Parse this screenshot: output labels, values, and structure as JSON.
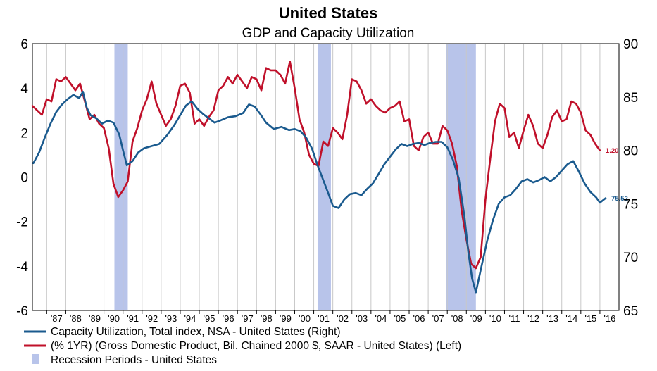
{
  "chart_data": {
    "type": "line",
    "title": "United States",
    "subtitle": "GDP and Capacity Utilization",
    "left_axis": {
      "ylim": [
        -6,
        6
      ],
      "ticks": [
        "6",
        "4",
        "2",
        "0",
        "-2",
        "-4",
        "-6"
      ],
      "tick_values": [
        6,
        4,
        2,
        0,
        -2,
        -4,
        -6
      ]
    },
    "right_axis": {
      "ylim": [
        65,
        90
      ],
      "ticks": [
        "90",
        "85",
        "80",
        "75",
        "70",
        "65"
      ],
      "tick_values": [
        90,
        85,
        80,
        75,
        70,
        65
      ]
    },
    "xlim": [
      1986.25,
      2017.0
    ],
    "x_tick_labels": [
      "'87",
      "'88",
      "'89",
      "'90",
      "'91",
      "'92",
      "'93",
      "'94",
      "'95",
      "'96",
      "'97",
      "'98",
      "'99",
      "'00",
      "'01",
      "'02",
      "'03",
      "'04",
      "'05",
      "'06",
      "'07",
      "'08",
      "'09",
      "'10",
      "'11",
      "'12",
      "'13",
      "'14",
      "'15",
      "'16"
    ],
    "x_tick_years": [
      1987,
      1988,
      1989,
      1990,
      1991,
      1992,
      1993,
      1994,
      1995,
      1996,
      1997,
      1998,
      1999,
      2000,
      2001,
      2002,
      2003,
      2004,
      2005,
      2006,
      2007,
      2008,
      2009,
      2010,
      2011,
      2012,
      2013,
      2014,
      2015,
      2016
    ],
    "grid": "vertical",
    "legend_placement": "bottom",
    "recessions": [
      {
        "start": 1990.55,
        "end": 1991.25
      },
      {
        "start": 2001.2,
        "end": 2001.9
      },
      {
        "start": 2007.95,
        "end": 2009.5
      }
    ],
    "series": [
      {
        "name": "Capacity Utilization, Total index, NSA - United States  (Right)",
        "axis": "right",
        "color": "#1a5a8e",
        "end_label": "75.52",
        "x": [
          1986.3,
          1986.6,
          1986.9,
          1987.2,
          1987.5,
          1987.8,
          1988.1,
          1988.4,
          1988.7,
          1988.9,
          1989.1,
          1989.3,
          1989.6,
          1989.9,
          1990.2,
          1990.5,
          1990.8,
          1991.0,
          1991.2,
          1991.5,
          1991.8,
          1992.1,
          1992.5,
          1992.9,
          1993.3,
          1993.7,
          1994.0,
          1994.3,
          1994.6,
          1994.9,
          1995.2,
          1995.5,
          1995.8,
          1996.1,
          1996.5,
          1996.9,
          1997.3,
          1997.6,
          1997.9,
          1998.2,
          1998.5,
          1998.9,
          1999.3,
          1999.7,
          2000.0,
          2000.3,
          2000.6,
          2000.9,
          2001.2,
          2001.5,
          2001.8,
          2002.0,
          2002.3,
          2002.6,
          2002.9,
          2003.2,
          2003.5,
          2003.8,
          2004.1,
          2004.4,
          2004.7,
          2005.0,
          2005.3,
          2005.6,
          2005.9,
          2006.2,
          2006.5,
          2006.8,
          2007.1,
          2007.4,
          2007.7,
          2008.0,
          2008.3,
          2008.6,
          2008.9,
          2009.1,
          2009.3,
          2009.5,
          2009.8,
          2010.1,
          2010.4,
          2010.7,
          2011.0,
          2011.3,
          2011.6,
          2011.9,
          2012.2,
          2012.5,
          2012.8,
          2013.1,
          2013.4,
          2013.7,
          2014.0,
          2014.3,
          2014.6,
          2014.9,
          2015.2,
          2015.5,
          2015.8,
          2016.0,
          2016.3
        ],
        "y": [
          78.8,
          79.8,
          81.2,
          82.5,
          83.6,
          84.3,
          84.8,
          85.2,
          84.9,
          85.5,
          84.0,
          83.3,
          83.0,
          82.5,
          82.8,
          82.6,
          81.5,
          80.0,
          78.6,
          79.0,
          79.8,
          80.2,
          80.4,
          80.6,
          81.4,
          82.4,
          83.3,
          84.2,
          84.6,
          83.9,
          83.4,
          83.0,
          82.6,
          82.8,
          83.1,
          83.2,
          83.5,
          84.3,
          84.1,
          83.4,
          82.6,
          82.0,
          82.2,
          81.9,
          82.0,
          81.8,
          81.2,
          80.2,
          78.6,
          77.2,
          75.8,
          74.8,
          74.6,
          75.4,
          75.9,
          76.0,
          75.8,
          76.4,
          76.9,
          77.8,
          78.7,
          79.4,
          80.1,
          80.6,
          80.4,
          80.6,
          80.7,
          80.5,
          80.7,
          80.8,
          80.8,
          80.3,
          79.1,
          77.4,
          73.8,
          70.5,
          68.0,
          66.7,
          69.2,
          71.6,
          73.5,
          75.0,
          75.6,
          75.8,
          76.4,
          77.1,
          77.3,
          77.0,
          77.2,
          77.5,
          77.1,
          77.5,
          78.1,
          78.7,
          79.0,
          78.0,
          76.9,
          76.1,
          75.6,
          75.1,
          75.52
        ]
      },
      {
        "name": "(% 1YR) (Gross Domestic Product, Bil. Chained 2000 $, SAAR - United States)  (Left)",
        "axis": "left",
        "color": "#c0102a",
        "end_label": "1.20",
        "x": [
          1986.25,
          1986.5,
          1986.75,
          1987.0,
          1987.25,
          1987.5,
          1987.75,
          1988.0,
          1988.25,
          1988.5,
          1988.75,
          1989.0,
          1989.25,
          1989.5,
          1989.75,
          1990.0,
          1990.25,
          1990.5,
          1990.75,
          1991.0,
          1991.25,
          1991.5,
          1991.75,
          1992.0,
          1992.25,
          1992.5,
          1992.75,
          1993.0,
          1993.25,
          1993.5,
          1993.75,
          1994.0,
          1994.25,
          1994.5,
          1994.75,
          1995.0,
          1995.25,
          1995.5,
          1995.75,
          1996.0,
          1996.25,
          1996.5,
          1996.75,
          1997.0,
          1997.25,
          1997.5,
          1997.75,
          1998.0,
          1998.25,
          1998.5,
          1998.75,
          1999.0,
          1999.25,
          1999.5,
          1999.75,
          2000.0,
          2000.25,
          2000.5,
          2000.75,
          2001.0,
          2001.25,
          2001.5,
          2001.75,
          2002.0,
          2002.25,
          2002.5,
          2002.75,
          2003.0,
          2003.25,
          2003.5,
          2003.75,
          2004.0,
          2004.25,
          2004.5,
          2004.75,
          2005.0,
          2005.25,
          2005.5,
          2005.75,
          2006.0,
          2006.25,
          2006.5,
          2006.75,
          2007.0,
          2007.25,
          2007.5,
          2007.75,
          2008.0,
          2008.25,
          2008.5,
          2008.75,
          2009.0,
          2009.25,
          2009.5,
          2009.75,
          2010.0,
          2010.25,
          2010.5,
          2010.75,
          2011.0,
          2011.25,
          2011.5,
          2011.75,
          2012.0,
          2012.25,
          2012.5,
          2012.75,
          2013.0,
          2013.25,
          2013.5,
          2013.75,
          2014.0,
          2014.25,
          2014.5,
          2014.75,
          2015.0,
          2015.25,
          2015.5,
          2015.75,
          2016.0
        ],
        "y": [
          3.2,
          3.0,
          2.8,
          3.5,
          3.4,
          4.4,
          4.3,
          4.5,
          4.2,
          3.9,
          4.2,
          3.4,
          2.6,
          2.8,
          2.4,
          2.2,
          1.3,
          -0.3,
          -0.9,
          -0.6,
          -0.2,
          1.6,
          2.2,
          3.0,
          3.5,
          4.3,
          3.3,
          2.8,
          2.3,
          2.6,
          3.2,
          4.1,
          4.2,
          3.8,
          2.4,
          2.6,
          2.3,
          2.7,
          3.0,
          3.9,
          4.1,
          4.5,
          4.2,
          4.6,
          4.3,
          4.0,
          4.5,
          4.4,
          3.9,
          4.9,
          4.8,
          4.8,
          4.6,
          4.2,
          5.2,
          4.0,
          2.6,
          2.0,
          1.0,
          0.6,
          0.5,
          1.6,
          1.4,
          2.2,
          2.0,
          1.7,
          2.8,
          4.4,
          4.3,
          3.9,
          3.3,
          3.5,
          3.2,
          3.0,
          2.9,
          3.1,
          3.2,
          3.4,
          2.5,
          2.6,
          1.4,
          1.2,
          1.8,
          2.0,
          1.5,
          1.5,
          2.3,
          2.1,
          1.5,
          0.5,
          -1.5,
          -2.8,
          -3.9,
          -4.1,
          -3.6,
          -1.0,
          0.8,
          2.5,
          3.3,
          3.1,
          1.8,
          2.0,
          1.3,
          2.1,
          2.8,
          2.3,
          1.5,
          1.3,
          1.9,
          2.7,
          3.0,
          2.5,
          2.6,
          3.4,
          3.3,
          2.9,
          2.1,
          1.9,
          1.5,
          1.2
        ]
      },
      {
        "name": "Recession Periods - United States",
        "axis": "left",
        "color": "#b8c4ea"
      }
    ]
  }
}
